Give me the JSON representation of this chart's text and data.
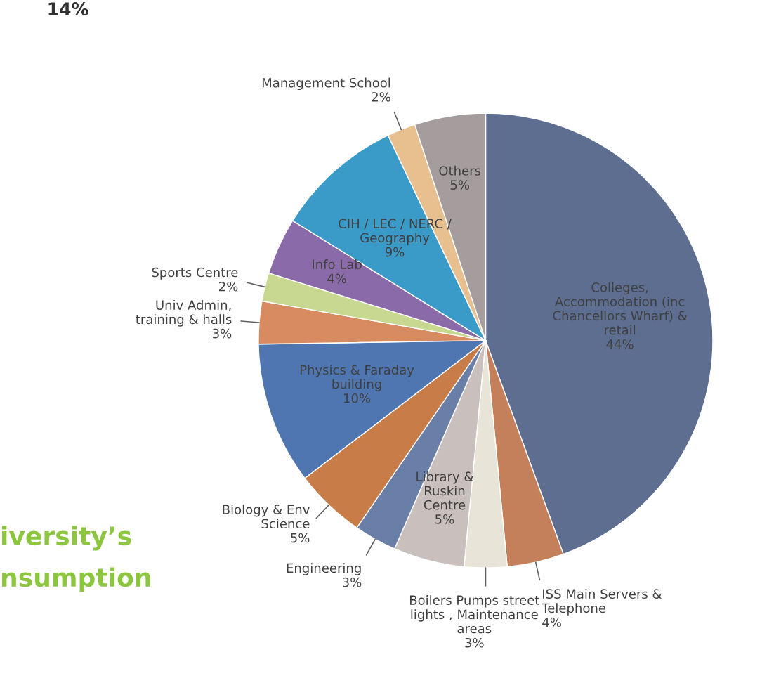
{
  "chart_data": {
    "type": "pie",
    "categories": [
      "Colleges,\nAccommodation (inc\nChancellors Wharf) &\nretail",
      "ISS Main Servers &\nTelephone",
      "Boilers Pumps street\nlights , Maintenance\nareas",
      "Library &\nRuskin\nCentre",
      "Engineering",
      "Biology & Env\nScience",
      "Physics & Faraday\nbuilding",
      "Univ Admin,\ntraining & halls",
      "Sports Centre",
      "Info Lab",
      "CIH / LEC / NERC /\nGeography",
      "Management School",
      "Others"
    ],
    "values": [
      44,
      4,
      3,
      5,
      3,
      5,
      10,
      3,
      2,
      4,
      9,
      2,
      5
    ],
    "value_labels": [
      "44%",
      "4%",
      "3%",
      "5%",
      "3%",
      "5%",
      "10%",
      "3%",
      "2%",
      "4%",
      "9%",
      "2%",
      "5%"
    ],
    "colors": [
      "#5e6e91",
      "#c4805a",
      "#e8e4d8",
      "#c9c0bd",
      "#6a7fa8",
      "#c87c48",
      "#4f76b0",
      "#d88a60",
      "#c8d890",
      "#8a6aa8",
      "#3a9ac8",
      "#e8c090",
      "#a59d9d"
    ],
    "annotations": [
      "14%",
      "iversity’s",
      "nsumption"
    ]
  }
}
